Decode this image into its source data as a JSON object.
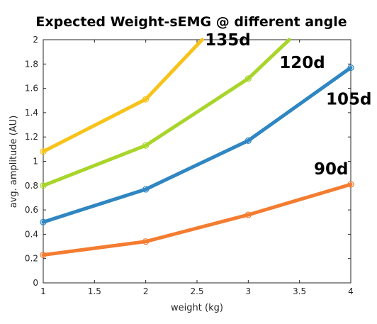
{
  "chart_data": {
    "type": "line",
    "title": "Expected Weight-sEMG @ different angle",
    "xlabel": "weight (kg)",
    "ylabel": "avg. amplitude (AU)",
    "xlim": [
      1,
      4
    ],
    "ylim": [
      0,
      2
    ],
    "xticks": [
      "1",
      "1.5",
      "2",
      "2.5",
      "3",
      "3.5",
      "4"
    ],
    "yticks": [
      "0",
      "0.2",
      "0.4",
      "0.6",
      "0.8",
      "1",
      "1.2",
      "1.4",
      "1.6",
      "1.8",
      "2"
    ],
    "grid": false,
    "series": [
      {
        "name": "90d",
        "color": "#f47c30",
        "x": [
          1,
          2,
          3,
          4
        ],
        "y": [
          0.23,
          0.34,
          0.56,
          0.81
        ]
      },
      {
        "name": "105d",
        "color": "#2f86c2",
        "x": [
          1,
          2,
          3,
          4
        ],
        "y": [
          0.5,
          0.77,
          1.17,
          1.77
        ]
      },
      {
        "name": "120d",
        "color": "#a8d52a",
        "x": [
          1,
          2,
          3,
          3.4
        ],
        "y": [
          0.8,
          1.13,
          1.68,
          2.0
        ]
      },
      {
        "name": "135d",
        "color": "#f7c31a",
        "x": [
          1,
          2,
          2.55
        ],
        "y": [
          1.08,
          1.51,
          2.0
        ]
      }
    ],
    "annotations": [
      {
        "text": "135d",
        "series": 3
      },
      {
        "text": "120d",
        "series": 2
      },
      {
        "text": "105d",
        "series": 1
      },
      {
        "text": "90d",
        "series": 0
      }
    ]
  }
}
